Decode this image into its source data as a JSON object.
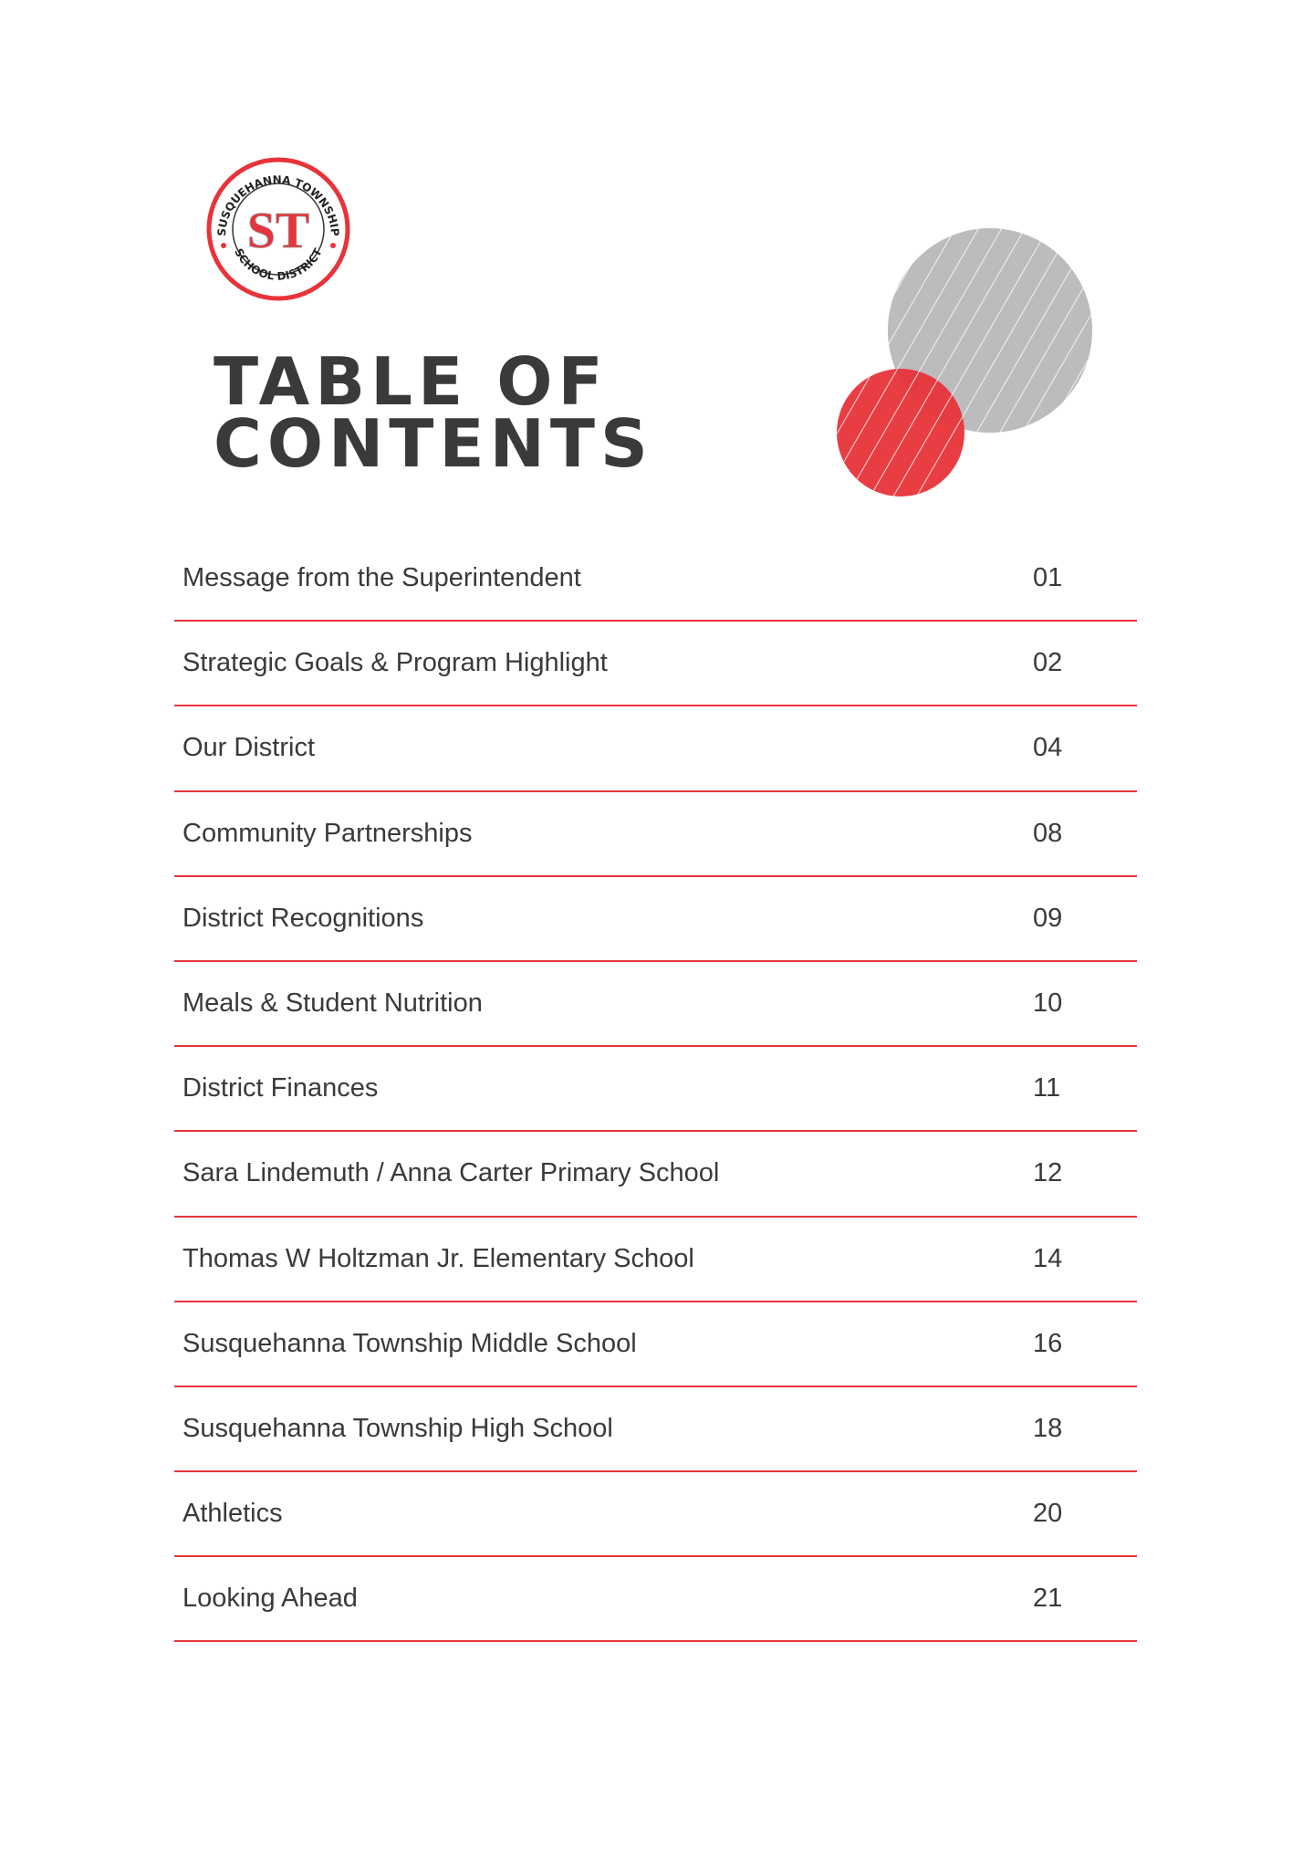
{
  "logo": {
    "top_text": "SUSQUEHANNA TOWNSHIP",
    "bottom_text": "SCHOOL DISTRICT",
    "monogram": "ST",
    "color": "#e8333a"
  },
  "title": {
    "line1": "TABLE OF",
    "line2": "CONTENTS"
  },
  "colors": {
    "accent": "#e8333a",
    "gray_circle": "#bcbbbe",
    "text": "#3a3a3c"
  },
  "toc": [
    {
      "label": "Message from the Superintendent",
      "page": "01"
    },
    {
      "label": "Strategic Goals & Program Highlight",
      "page": "02"
    },
    {
      "label": "Our District",
      "page": "04"
    },
    {
      "label": "Community Partnerships",
      "page": "08"
    },
    {
      "label": "District Recognitions",
      "page": "09"
    },
    {
      "label": "Meals & Student Nutrition",
      "page": "10"
    },
    {
      "label": "District Finances",
      "page": "11"
    },
    {
      "label": "Sara Lindemuth / Anna Carter Primary School",
      "page": "12"
    },
    {
      "label": "Thomas W Holtzman Jr. Elementary School",
      "page": "14"
    },
    {
      "label": "Susquehanna Township Middle School",
      "page": "16"
    },
    {
      "label": "Susquehanna Township High School",
      "page": "18"
    },
    {
      "label": "Athletics",
      "page": "20"
    },
    {
      "label": "Looking Ahead",
      "page": "21"
    }
  ]
}
